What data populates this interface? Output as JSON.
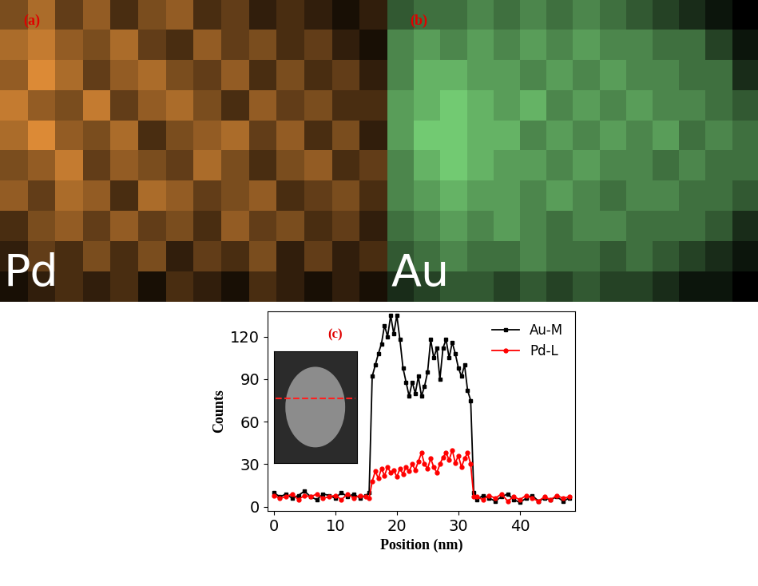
{
  "chart_data": [
    {
      "type": "heatmap",
      "title": "Pd",
      "annotation": "(a)",
      "color": "#f59a3c",
      "tick_labels": false,
      "color_range": [
        0,
        1
      ],
      "cells": [
        [
          0.5,
          0.7,
          0.4,
          0.6,
          0.3,
          0.5,
          0.6,
          0.3,
          0.4,
          0.2,
          0.3,
          0.2,
          0.1,
          0.2
        ],
        [
          0.7,
          0.8,
          0.6,
          0.5,
          0.7,
          0.4,
          0.3,
          0.6,
          0.4,
          0.5,
          0.3,
          0.4,
          0.2,
          0.1
        ],
        [
          0.6,
          0.9,
          0.7,
          0.4,
          0.6,
          0.7,
          0.5,
          0.4,
          0.6,
          0.3,
          0.5,
          0.3,
          0.4,
          0.2
        ],
        [
          0.8,
          0.6,
          0.5,
          0.8,
          0.4,
          0.6,
          0.7,
          0.5,
          0.3,
          0.6,
          0.4,
          0.5,
          0.3,
          0.3
        ],
        [
          0.7,
          0.9,
          0.6,
          0.5,
          0.7,
          0.3,
          0.5,
          0.6,
          0.7,
          0.4,
          0.6,
          0.3,
          0.5,
          0.2
        ],
        [
          0.5,
          0.6,
          0.8,
          0.4,
          0.6,
          0.5,
          0.4,
          0.7,
          0.5,
          0.3,
          0.5,
          0.6,
          0.3,
          0.4
        ],
        [
          0.6,
          0.4,
          0.7,
          0.6,
          0.3,
          0.7,
          0.6,
          0.4,
          0.5,
          0.6,
          0.3,
          0.4,
          0.5,
          0.3
        ],
        [
          0.3,
          0.5,
          0.6,
          0.4,
          0.6,
          0.4,
          0.5,
          0.3,
          0.6,
          0.4,
          0.5,
          0.3,
          0.4,
          0.2
        ],
        [
          0.2,
          0.4,
          0.3,
          0.5,
          0.3,
          0.5,
          0.2,
          0.4,
          0.3,
          0.5,
          0.2,
          0.4,
          0.2,
          0.3
        ],
        [
          0.1,
          0.2,
          0.3,
          0.2,
          0.3,
          0.1,
          0.3,
          0.2,
          0.1,
          0.3,
          0.2,
          0.1,
          0.2,
          0.1
        ]
      ]
    },
    {
      "type": "heatmap",
      "title": "Au",
      "annotation": "(b)",
      "color": "#7fe07f",
      "tick_labels": false,
      "color_range": [
        0,
        1
      ],
      "cells": [
        [
          0.4,
          0.5,
          0.5,
          0.6,
          0.5,
          0.6,
          0.5,
          0.6,
          0.5,
          0.4,
          0.3,
          0.2,
          0.1,
          0.0
        ],
        [
          0.6,
          0.7,
          0.6,
          0.7,
          0.6,
          0.7,
          0.6,
          0.7,
          0.6,
          0.6,
          0.5,
          0.5,
          0.3,
          0.1
        ],
        [
          0.6,
          0.8,
          0.8,
          0.7,
          0.7,
          0.6,
          0.7,
          0.6,
          0.7,
          0.6,
          0.6,
          0.5,
          0.5,
          0.2
        ],
        [
          0.7,
          0.8,
          0.9,
          0.8,
          0.7,
          0.8,
          0.6,
          0.7,
          0.6,
          0.7,
          0.6,
          0.6,
          0.5,
          0.4
        ],
        [
          0.7,
          0.9,
          0.9,
          0.8,
          0.8,
          0.6,
          0.7,
          0.6,
          0.7,
          0.6,
          0.7,
          0.5,
          0.6,
          0.5
        ],
        [
          0.6,
          0.8,
          0.9,
          0.8,
          0.7,
          0.7,
          0.6,
          0.7,
          0.6,
          0.6,
          0.5,
          0.6,
          0.5,
          0.5
        ],
        [
          0.6,
          0.7,
          0.8,
          0.7,
          0.7,
          0.6,
          0.7,
          0.6,
          0.5,
          0.6,
          0.6,
          0.5,
          0.5,
          0.4
        ],
        [
          0.5,
          0.6,
          0.7,
          0.6,
          0.7,
          0.6,
          0.5,
          0.6,
          0.6,
          0.5,
          0.5,
          0.5,
          0.4,
          0.2
        ],
        [
          0.4,
          0.5,
          0.6,
          0.5,
          0.5,
          0.6,
          0.5,
          0.5,
          0.4,
          0.5,
          0.4,
          0.3,
          0.2,
          0.1
        ],
        [
          0.2,
          0.3,
          0.4,
          0.4,
          0.3,
          0.4,
          0.3,
          0.4,
          0.3,
          0.3,
          0.2,
          0.1,
          0.1,
          0.0
        ]
      ]
    },
    {
      "type": "line",
      "annotation": "(c)",
      "x_label": "Position (nm)",
      "y_label": "Counts",
      "xlim": [
        -1,
        49
      ],
      "ylim": [
        -3,
        138
      ],
      "xticks": [
        0,
        10,
        20,
        30,
        40
      ],
      "yticks": [
        0,
        30,
        60,
        90,
        120
      ],
      "legend": "upper right",
      "x": [
        0,
        1,
        2,
        3,
        4,
        5,
        6,
        7,
        8,
        9,
        10,
        11,
        12,
        13,
        14,
        15,
        15.5,
        16,
        16.5,
        17,
        17.5,
        18,
        18.5,
        19,
        19.5,
        20,
        20.5,
        21,
        21.5,
        22,
        22.5,
        23,
        23.5,
        24,
        24.5,
        25,
        25.5,
        26,
        26.5,
        27,
        27.5,
        28,
        28.5,
        29,
        29.5,
        30,
        30.5,
        31,
        31.5,
        32,
        32.5,
        33,
        34,
        35,
        36,
        37,
        38,
        39,
        40,
        41,
        42,
        43,
        44,
        45,
        46,
        47,
        48
      ],
      "series": [
        {
          "name": "Au-M",
          "color": "#000000",
          "marker": "square",
          "values": [
            10,
            7,
            9,
            6,
            8,
            11,
            7,
            5,
            9,
            8,
            6,
            10,
            7,
            9,
            6,
            8,
            10,
            92,
            100,
            108,
            115,
            128,
            120,
            135,
            122,
            135,
            118,
            98,
            88,
            78,
            88,
            80,
            92,
            78,
            85,
            95,
            118,
            105,
            112,
            90,
            112,
            118,
            105,
            116,
            108,
            98,
            92,
            100,
            82,
            75,
            10,
            5,
            8,
            6,
            4,
            7,
            9,
            5,
            3,
            6,
            8,
            4,
            6,
            5,
            7,
            4,
            6
          ]
        },
        {
          "name": "Pd-L",
          "color": "#ff0000",
          "marker": "circle",
          "values": [
            8,
            6,
            7,
            9,
            5,
            8,
            7,
            9,
            6,
            7,
            8,
            5,
            9,
            6,
            8,
            7,
            6,
            18,
            25,
            20,
            27,
            22,
            28,
            24,
            26,
            21,
            27,
            23,
            28,
            25,
            30,
            26,
            32,
            38,
            30,
            27,
            34,
            28,
            24,
            30,
            35,
            38,
            33,
            40,
            31,
            36,
            28,
            34,
            38,
            30,
            7,
            7,
            5,
            8,
            6,
            9,
            4,
            7,
            5,
            8,
            6,
            4,
            7,
            5,
            8,
            6,
            7
          ]
        }
      ]
    }
  ]
}
